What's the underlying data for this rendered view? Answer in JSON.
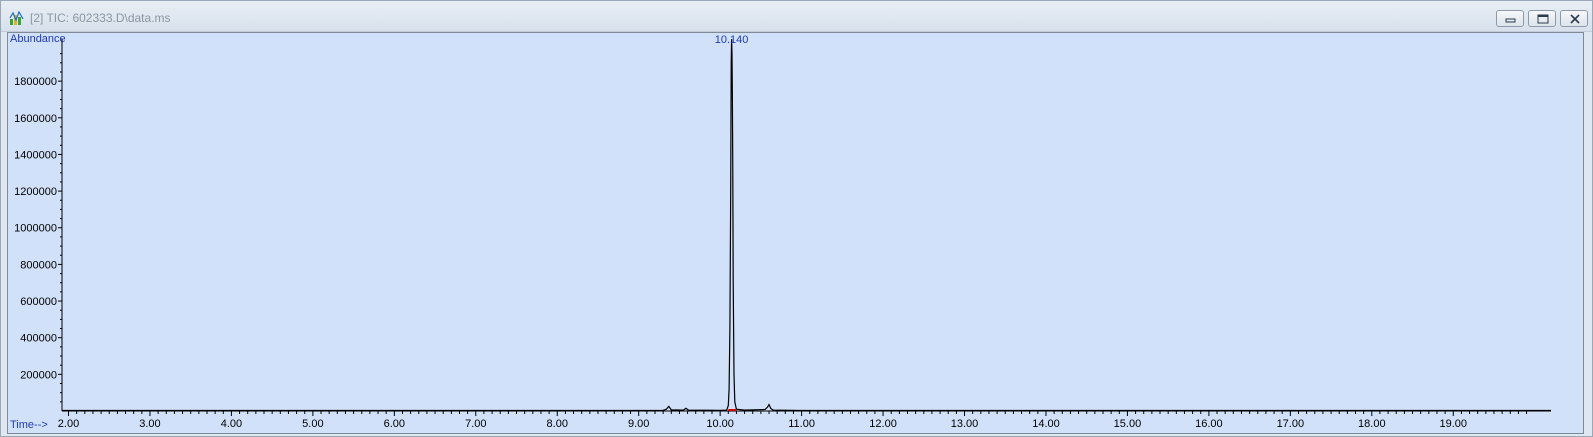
{
  "window": {
    "title": "[2] TIC: 602333.D\\data.ms",
    "icon": "chromatogram-app-icon",
    "buttons": [
      "minimize-icon",
      "restore-icon",
      "close-icon"
    ]
  },
  "colors": {
    "plot_background": "#d2e1fa",
    "axis_label": "#1f3bb3",
    "trace": "#000000",
    "peak_label": "#1f3bb3",
    "baseline_marker": "#d40000"
  },
  "chart_data": {
    "type": "line",
    "ylabel": "Abundance",
    "xlabel": "Time-->",
    "xlim": [
      1.92,
      20.2
    ],
    "ylim": [
      0,
      2030000
    ],
    "x_ticks": [
      "2.00",
      "3.00",
      "4.00",
      "5.00",
      "6.00",
      "7.00",
      "8.00",
      "9.00",
      "10.00",
      "11.00",
      "12.00",
      "13.00",
      "14.00",
      "15.00",
      "16.00",
      "17.00",
      "18.00",
      "19.00"
    ],
    "y_ticks": [
      "200000",
      "400000",
      "600000",
      "800000",
      "1000000",
      "1200000",
      "1400000",
      "1600000",
      "1800000"
    ],
    "grid": false,
    "series": [
      {
        "x": [
          1.92,
          8.9,
          9.3,
          9.34,
          9.37,
          9.4,
          9.55,
          9.58,
          9.61,
          10.0,
          10.08,
          10.1,
          10.11,
          10.12,
          10.13,
          10.135,
          10.14,
          10.145,
          10.15,
          10.155,
          10.16,
          10.17,
          10.18,
          10.2,
          10.3,
          10.55,
          10.58,
          10.6,
          10.62,
          10.65,
          11.0,
          20.2
        ],
        "y": [
          3000,
          3000,
          4000,
          10000,
          25000,
          6000,
          5000,
          15000,
          5000,
          4000,
          5000,
          30000,
          120000,
          450000,
          1200000,
          1900000,
          2030000,
          1950000,
          1700000,
          1300000,
          700000,
          200000,
          50000,
          10000,
          5000,
          8000,
          20000,
          35000,
          15000,
          5000,
          3000,
          3000
        ]
      }
    ],
    "annotations": [
      {
        "text": "10.140",
        "x": 10.14
      }
    ]
  }
}
